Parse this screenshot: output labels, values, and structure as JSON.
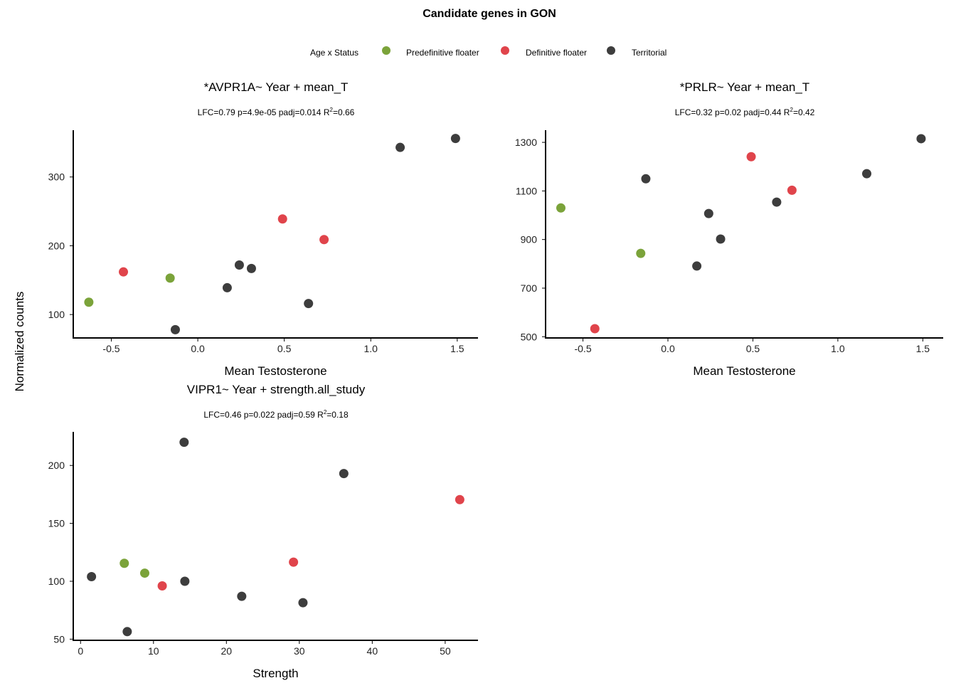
{
  "figure": {
    "title": "Candidate genes in GON",
    "shared_ylabel": "Normalized counts"
  },
  "legend": {
    "title": "Age x Status",
    "entries": [
      {
        "label": "Predefinitive floater",
        "color": "#7ba33a"
      },
      {
        "label": "Definitive floater",
        "color": "#e0444b"
      },
      {
        "label": "Territorial",
        "color": "#3d3d3d"
      }
    ],
    "placement": "top"
  },
  "chart_data": [
    {
      "type": "scatter",
      "title": "*AVPR1A~ Year + mean_T",
      "subtitle": {
        "main": "LFC=0.79 p=4.9e-05 padj=0.014 R",
        "sup": "2",
        "tail": "=0.66"
      },
      "xlabel": "Mean Testosterone",
      "ylabel": "",
      "xlim": [
        -0.72,
        1.62
      ],
      "ylim": [
        66,
        368
      ],
      "xticks": [
        -0.5,
        0.0,
        0.5,
        1.0,
        1.5
      ],
      "xtick_labels": [
        "-0.5",
        "0.0",
        "0.5",
        "1.0",
        "1.5"
      ],
      "yticks": [
        100,
        200,
        300
      ],
      "ytick_labels": [
        "100",
        "200",
        "300"
      ],
      "grid": false,
      "series": [
        {
          "name": "Predefinitive floater",
          "x": [
            -0.63,
            -0.16
          ],
          "y": [
            118,
            153
          ]
        },
        {
          "name": "Definitive floater",
          "x": [
            -0.43,
            0.49,
            0.73
          ],
          "y": [
            162,
            239,
            209
          ]
        },
        {
          "name": "Territorial",
          "x": [
            -0.13,
            0.17,
            0.24,
            0.31,
            0.64,
            1.17,
            1.49
          ],
          "y": [
            78,
            139,
            172,
            167,
            116,
            343,
            356
          ]
        }
      ]
    },
    {
      "type": "scatter",
      "title": "*PRLR~ Year + mean_T",
      "subtitle": {
        "main": "LFC=0.32 p=0.02 padj=0.44 R",
        "sup": "2",
        "tail": "=0.42"
      },
      "xlabel": "Mean Testosterone",
      "ylabel": "",
      "xlim": [
        -0.72,
        1.62
      ],
      "ylim": [
        495,
        1350
      ],
      "xticks": [
        -0.5,
        0.0,
        0.5,
        1.0,
        1.5
      ],
      "xtick_labels": [
        "-0.5",
        "0.0",
        "0.5",
        "1.0",
        "1.5"
      ],
      "yticks": [
        500,
        700,
        900,
        1100,
        1300
      ],
      "ytick_labels": [
        "500",
        "700",
        "900",
        "1100",
        "1300"
      ],
      "grid": false,
      "series": [
        {
          "name": "Predefinitive floater",
          "x": [
            -0.63,
            -0.16
          ],
          "y": [
            1030,
            843
          ]
        },
        {
          "name": "Definitive floater",
          "x": [
            -0.43,
            0.49,
            0.73
          ],
          "y": [
            533,
            1241,
            1103
          ]
        },
        {
          "name": "Territorial",
          "x": [
            -0.13,
            0.17,
            0.24,
            0.31,
            0.64,
            1.17,
            1.49
          ],
          "y": [
            1150,
            791,
            1007,
            902,
            1054,
            1171,
            1315
          ]
        }
      ]
    },
    {
      "type": "scatter",
      "title": "VIPR1~ Year + strength.all_study",
      "subtitle": {
        "main": "LFC=0.46 p=0.022 padj=0.59 R",
        "sup": "2",
        "tail": "=0.18"
      },
      "xlabel": "Strength",
      "ylabel": "",
      "xlim": [
        -1,
        54.5
      ],
      "ylim": [
        49,
        229
      ],
      "xticks": [
        0,
        10,
        20,
        30,
        40,
        50
      ],
      "xtick_labels": [
        "0",
        "10",
        "20",
        "30",
        "40",
        "50"
      ],
      "yticks": [
        50,
        100,
        150,
        200
      ],
      "ytick_labels": [
        "50",
        "100",
        "150",
        "200"
      ],
      "grid": false,
      "series": [
        {
          "name": "Predefinitive floater",
          "x": [
            6,
            8.8
          ],
          "y": [
            115.5,
            107
          ]
        },
        {
          "name": "Definitive floater",
          "x": [
            11.2,
            29.2,
            52
          ],
          "y": [
            96,
            116.5,
            170.5
          ]
        },
        {
          "name": "Territorial",
          "x": [
            1.5,
            6.4,
            14.2,
            14.3,
            22.1,
            30.5,
            36.1
          ],
          "y": [
            104,
            56.5,
            220,
            100,
            87,
            81.5,
            193
          ]
        }
      ]
    }
  ]
}
